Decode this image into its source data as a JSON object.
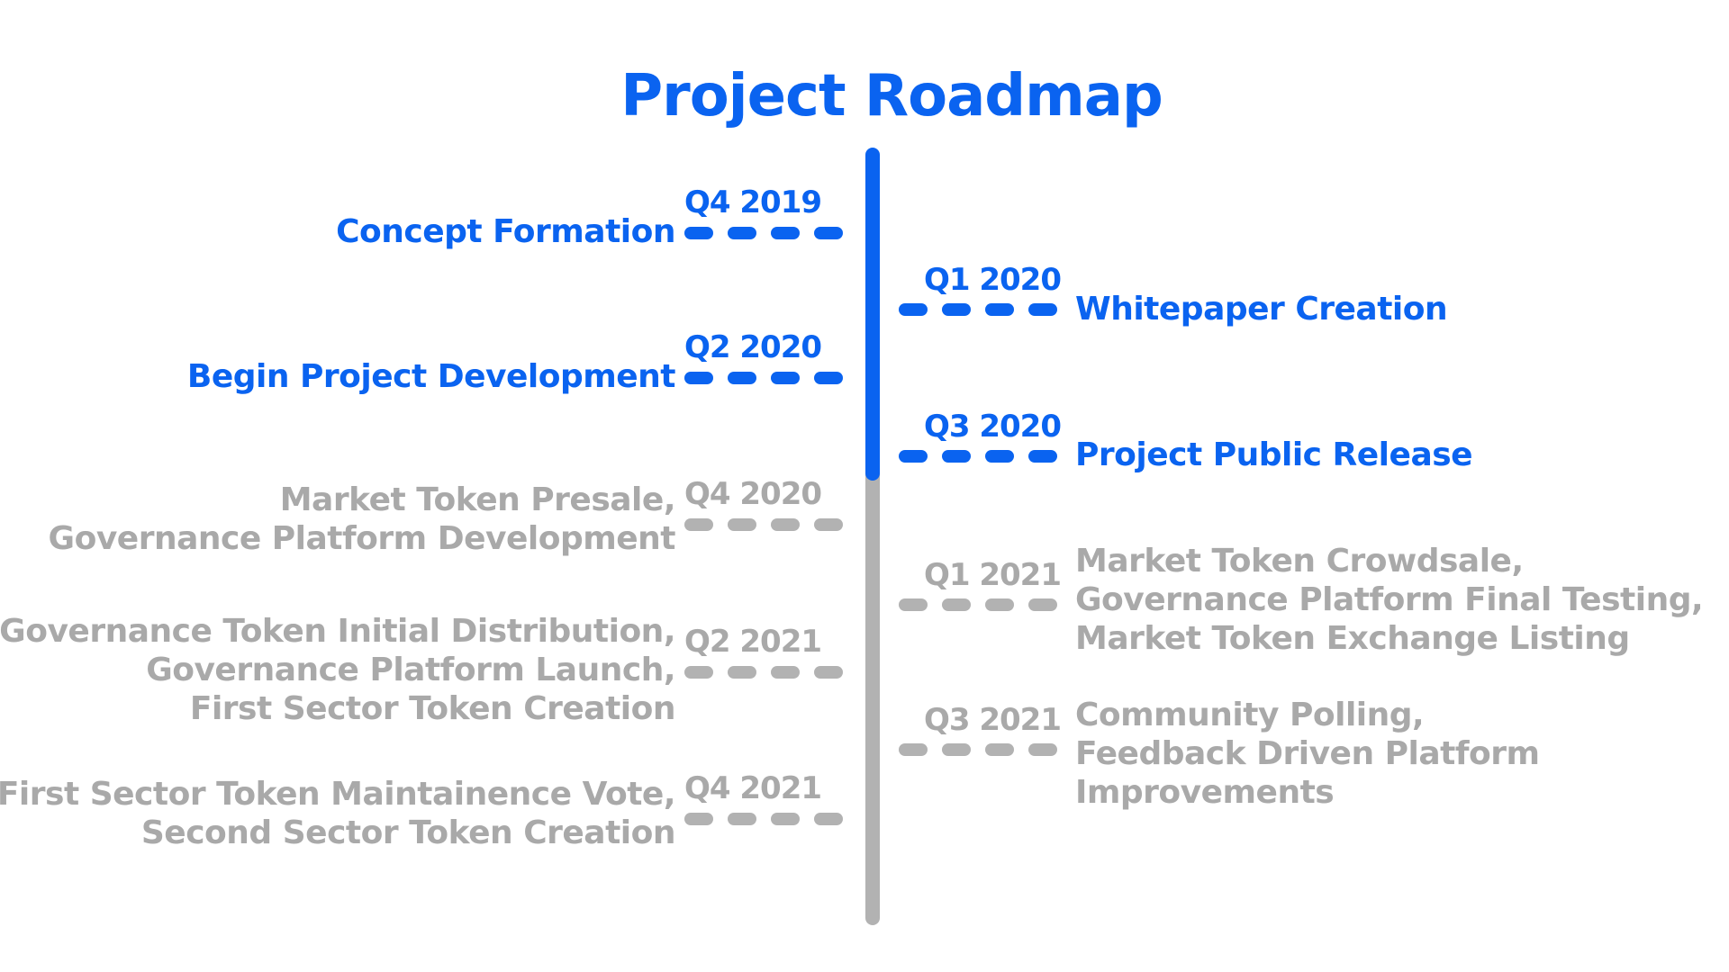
{
  "title": "Project Roadmap",
  "colors": {
    "completed": "#0a63f0",
    "upcoming": "#b2b2b2"
  },
  "milestones": [
    {
      "side": "left",
      "status": "completed",
      "quarter": "Q4 2019",
      "lines": [
        "Concept Formation"
      ]
    },
    {
      "side": "right",
      "status": "completed",
      "quarter": "Q1 2020",
      "lines": [
        "Whitepaper Creation"
      ]
    },
    {
      "side": "left",
      "status": "completed",
      "quarter": "Q2 2020",
      "lines": [
        "Begin Project Development"
      ]
    },
    {
      "side": "right",
      "status": "completed",
      "quarter": "Q3 2020",
      "lines": [
        "Project Public Release"
      ]
    },
    {
      "side": "left",
      "status": "upcoming",
      "quarter": "Q4 2020",
      "lines": [
        "Market Token Presale,",
        "Governance Platform Development"
      ]
    },
    {
      "side": "right",
      "status": "upcoming",
      "quarter": "Q1 2021",
      "lines": [
        "Market Token Crowdsale,",
        "Governance Platform Final Testing,",
        "Market Token Exchange Listing"
      ]
    },
    {
      "side": "left",
      "status": "upcoming",
      "quarter": "Q2 2021",
      "lines": [
        "Governance Token Initial Distribution,",
        "Governance Platform Launch,",
        "First Sector Token Creation"
      ]
    },
    {
      "side": "right",
      "status": "upcoming",
      "quarter": "Q3 2021",
      "lines": [
        "Community Polling,",
        "Feedback Driven Platform",
        "Improvements"
      ]
    },
    {
      "side": "left",
      "status": "upcoming",
      "quarter": "Q4 2021",
      "lines": [
        "First Sector Token Maintainence Vote,",
        "Second Sector Token Creation"
      ]
    }
  ]
}
